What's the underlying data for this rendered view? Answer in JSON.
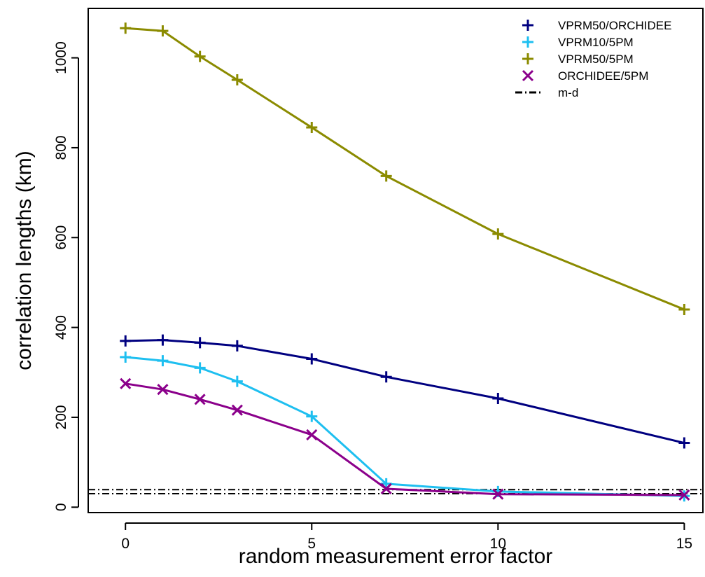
{
  "chart_data": {
    "type": "line",
    "title": "",
    "xlabel": "random measurement error factor",
    "ylabel": "correlation lengths (km)",
    "xlim": [
      -1,
      15.5
    ],
    "ylim": [
      -12,
      1110
    ],
    "x_ticks": [
      0,
      5,
      10,
      15
    ],
    "y_ticks": [
      0,
      200,
      400,
      600,
      800,
      1000
    ],
    "x": [
      0,
      1,
      2,
      3,
      5,
      7,
      10,
      15
    ],
    "series": [
      {
        "name": "VPRM50/ORCHIDEE",
        "color": "#000080",
        "marker": "plus",
        "values": [
          370,
          372,
          366,
          359,
          330,
          290,
          242,
          143
        ]
      },
      {
        "name": "VPRM10/5PM",
        "color": "#1EBFF0",
        "marker": "plus",
        "values": [
          334,
          326,
          310,
          280,
          202,
          52,
          35,
          25
        ]
      },
      {
        "name": "VPRM50/5PM",
        "color": "#8B8B00",
        "marker": "plus",
        "values": [
          1066,
          1060,
          1003,
          951,
          845,
          737,
          608,
          440
        ]
      },
      {
        "name": "ORCHIDEE/5PM",
        "color": "#8B008B",
        "marker": "x",
        "values": [
          275,
          262,
          240,
          216,
          161,
          41,
          29,
          27
        ]
      }
    ],
    "reference_lines": {
      "name": "m-d",
      "color": "#000000",
      "style": "dash-dot",
      "values": [
        39,
        30
      ]
    },
    "grid": false,
    "legend_position": "top-right"
  }
}
